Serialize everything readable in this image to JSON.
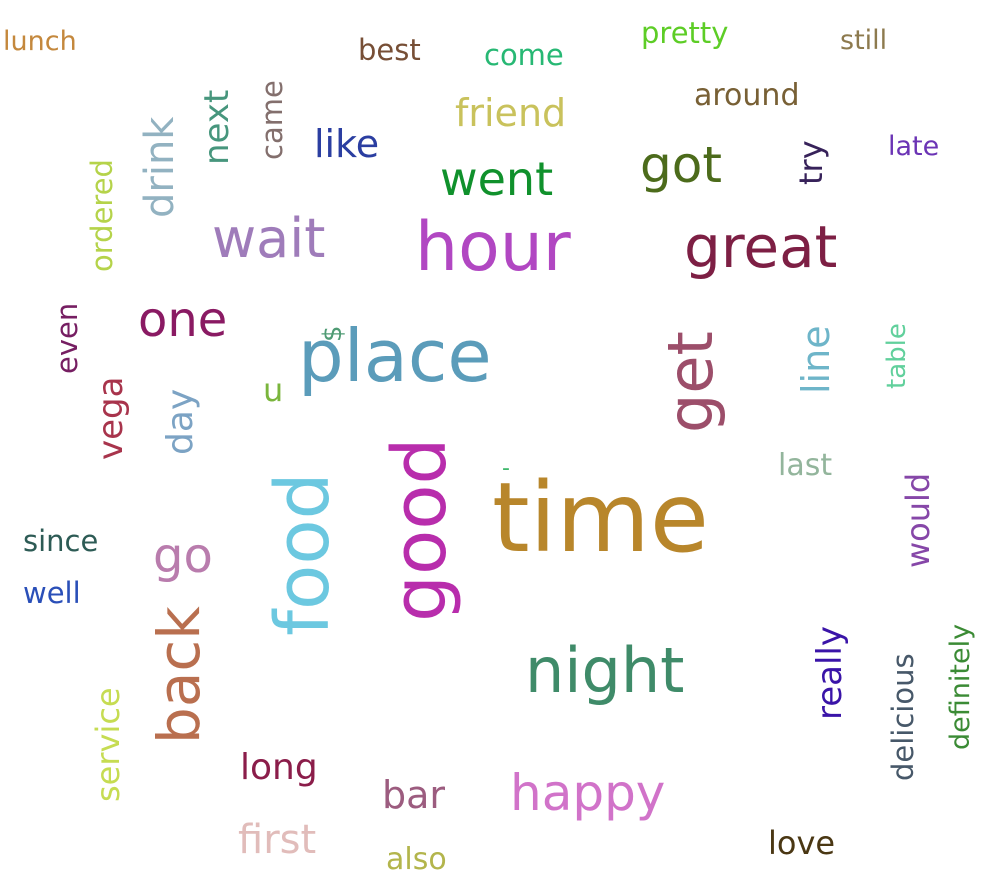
{
  "words": [
    {
      "text": "time",
      "color": "#b8862b"
    },
    {
      "text": "place",
      "color": "#5b9cba"
    },
    {
      "text": "good",
      "color": "#b82dac"
    },
    {
      "text": "food",
      "color": "#6cc8e0"
    },
    {
      "text": "hour",
      "color": "#b147c2"
    },
    {
      "text": "great",
      "color": "#7d1f44"
    },
    {
      "text": "night",
      "color": "#3f8b69"
    },
    {
      "text": "get",
      "color": "#9c4e6a"
    },
    {
      "text": "back",
      "color": "#b96f4f"
    },
    {
      "text": "wait",
      "color": "#9f7cba"
    },
    {
      "text": "happy",
      "color": "#d173c9"
    },
    {
      "text": "one",
      "color": "#8a1a63"
    },
    {
      "text": "got",
      "color": "#4c6b1b"
    },
    {
      "text": "went",
      "color": "#10912c"
    },
    {
      "text": "go",
      "color": "#b97cad"
    },
    {
      "text": "friend",
      "color": "#c9c25c"
    },
    {
      "text": "like",
      "color": "#2b3ea1"
    },
    {
      "text": "long",
      "color": "#8b1d4a"
    },
    {
      "text": "first",
      "color": "#e1bcba"
    },
    {
      "text": "bar",
      "color": "#9c5c7f"
    },
    {
      "text": "around",
      "color": "#786035"
    },
    {
      "text": "love",
      "color": "#4a3713"
    },
    {
      "text": "come",
      "color": "#27b874"
    },
    {
      "text": "pretty",
      "color": "#5dcd26"
    },
    {
      "text": "best",
      "color": "#774f36"
    },
    {
      "text": "still",
      "color": "#8d7a4e"
    },
    {
      "text": "lunch",
      "color": "#c4883d"
    },
    {
      "text": "late",
      "color": "#6b34b5"
    },
    {
      "text": "last",
      "color": "#93b59c"
    },
    {
      "text": "since",
      "color": "#2d5b55"
    },
    {
      "text": "well",
      "color": "#2a4fb8"
    },
    {
      "text": "also",
      "color": "#b3b54c"
    },
    {
      "text": "u",
      "color": "#7ab53c"
    },
    {
      "text": "-",
      "color": "#3fb86c"
    },
    {
      "text": "drink",
      "color": "#92b2c1"
    },
    {
      "text": "next",
      "color": "#47967d"
    },
    {
      "text": "came",
      "color": "#836f6d"
    },
    {
      "text": "ordered",
      "color": "#b5d34a"
    },
    {
      "text": "try",
      "color": "#37225a"
    },
    {
      "text": "even",
      "color": "#761e62"
    },
    {
      "text": "vega",
      "color": "#a8344c"
    },
    {
      "text": "day",
      "color": "#7ca3c4"
    },
    {
      "text": "$",
      "color": "#4f9b74"
    },
    {
      "text": "line",
      "color": "#6eb5c9"
    },
    {
      "text": "table",
      "color": "#61d09c"
    },
    {
      "text": "would",
      "color": "#8647a8"
    },
    {
      "text": "service",
      "color": "#c6dc52"
    },
    {
      "text": "really",
      "color": "#3a14a8"
    },
    {
      "text": "delicious",
      "color": "#475869"
    },
    {
      "text": "definitely",
      "color": "#3b8b35"
    }
  ]
}
